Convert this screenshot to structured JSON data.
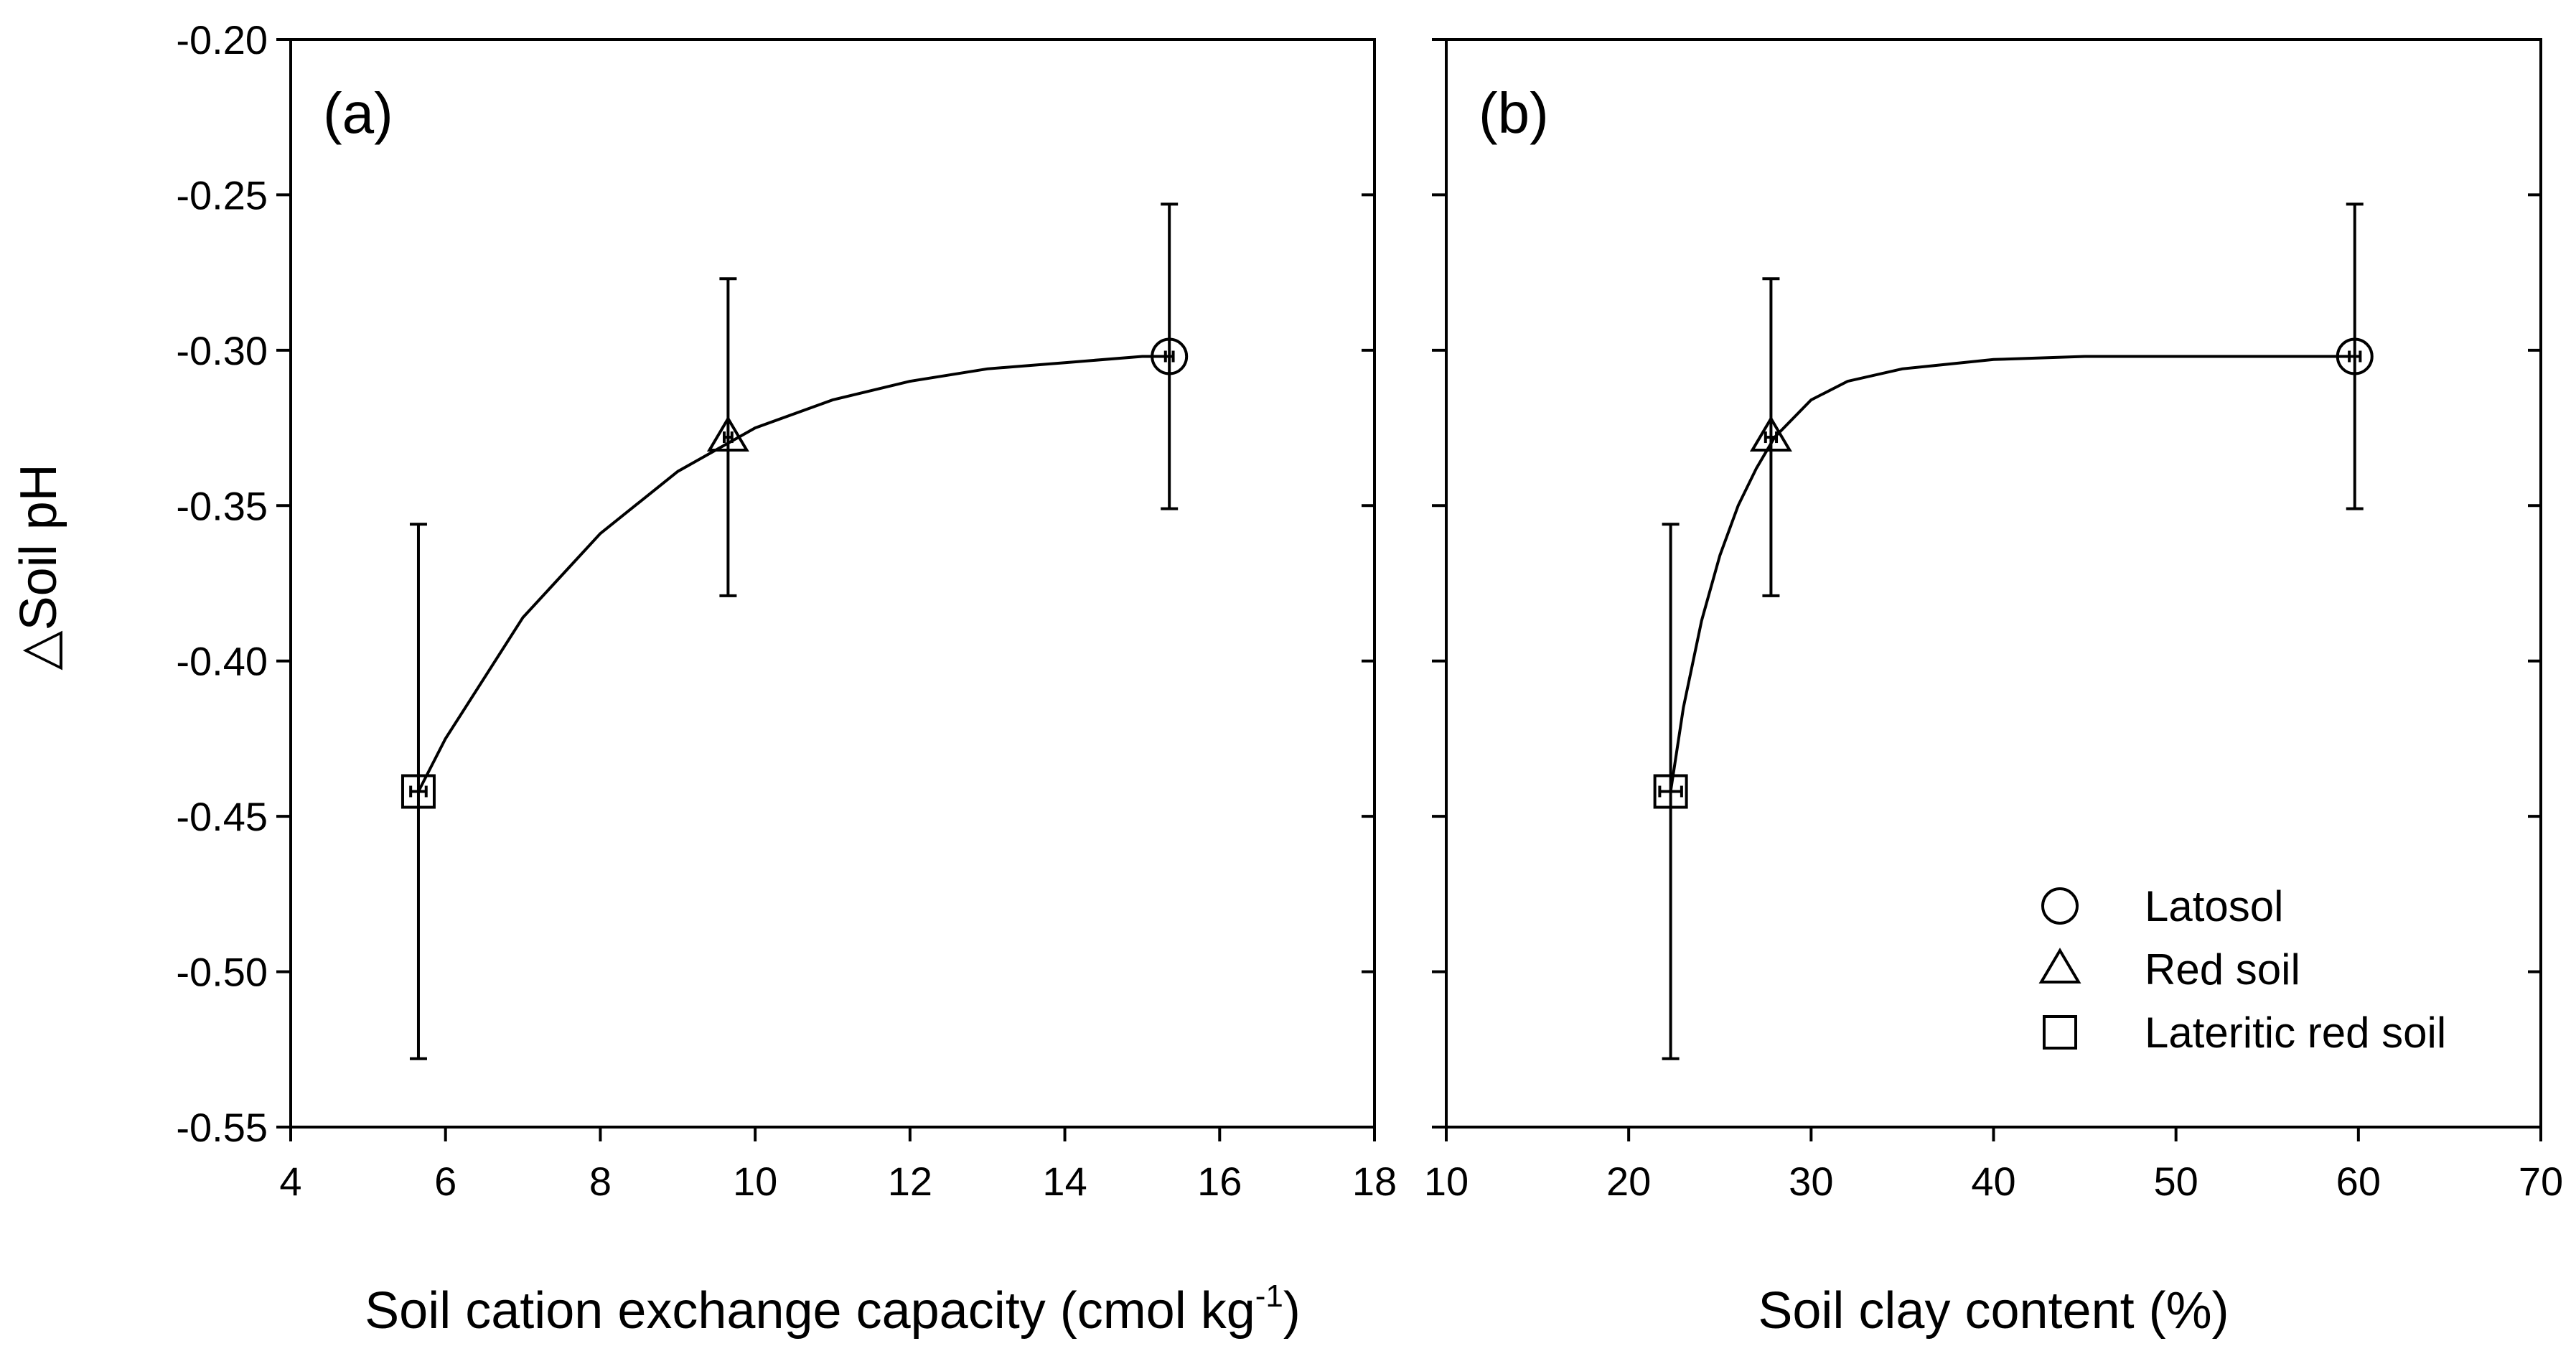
{
  "shared_y_axis": {
    "label": "△Soil pH",
    "ticks": [
      "-0.20",
      "-0.25",
      "-0.30",
      "-0.35",
      "-0.40",
      "-0.45",
      "-0.50",
      "-0.55"
    ]
  },
  "legend": {
    "placement": "bottom-right of panel (b)",
    "entries": [
      {
        "label": "Latosol",
        "marker": "circle"
      },
      {
        "label": "Red soil",
        "marker": "triangle"
      },
      {
        "label": "Lateritic red soil",
        "marker": "square"
      }
    ]
  },
  "chart_data": [
    {
      "type": "scatter",
      "panel_label": "(a)",
      "xlabel_main": "Soil cation exchange capacity (cmol kg",
      "xlabel_sup": "-1",
      "xlabel_end": ")",
      "ylabel": "△Soil pH",
      "xlim": [
        4,
        18
      ],
      "ylim": [
        -0.55,
        -0.2
      ],
      "x_ticks": [
        "4",
        "6",
        "8",
        "10",
        "12",
        "14",
        "16",
        "18"
      ],
      "grid": false,
      "series": [
        {
          "name": "Latosol",
          "marker": "circle",
          "x": 15.35,
          "y": -0.302,
          "y_err_low": -0.351,
          "y_err_high": -0.253,
          "x_err": 0.05
        },
        {
          "name": "Red soil",
          "marker": "triangle",
          "x": 9.65,
          "y": -0.328,
          "y_err_low": -0.379,
          "y_err_high": -0.277,
          "x_err": 0.05
        },
        {
          "name": "Lateritic red soil",
          "marker": "square",
          "x": 5.65,
          "y": -0.442,
          "y_err_low": -0.528,
          "y_err_high": -0.356,
          "x_err": 0.1
        }
      ],
      "fit_curve": {
        "x": [
          5.65,
          6,
          7,
          8,
          9,
          10,
          11,
          12,
          13,
          14,
          15,
          15.35
        ],
        "y": [
          -0.442,
          -0.425,
          -0.386,
          -0.359,
          -0.339,
          -0.325,
          -0.316,
          -0.31,
          -0.306,
          -0.304,
          -0.302,
          -0.302
        ]
      }
    },
    {
      "type": "scatter",
      "panel_label": "(b)",
      "xlabel_main": "Soil clay content (%)",
      "xlabel_sup": "",
      "xlabel_end": "",
      "ylabel": "△Soil pH",
      "xlim": [
        10,
        70
      ],
      "ylim": [
        -0.55,
        -0.2
      ],
      "x_ticks": [
        "10",
        "20",
        "30",
        "40",
        "50",
        "60",
        "70"
      ],
      "grid": false,
      "series": [
        {
          "name": "Latosol",
          "marker": "circle",
          "x": 59.8,
          "y": -0.302,
          "y_err_low": -0.351,
          "y_err_high": -0.253,
          "x_err": 0.3
        },
        {
          "name": "Red soil",
          "marker": "triangle",
          "x": 27.8,
          "y": -0.328,
          "y_err_low": -0.379,
          "y_err_high": -0.277,
          "x_err": 0.3
        },
        {
          "name": "Lateritic red soil",
          "marker": "square",
          "x": 22.3,
          "y": -0.442,
          "y_err_low": -0.528,
          "y_err_high": -0.356,
          "x_err": 0.6
        }
      ],
      "fit_curve": {
        "x": [
          22.3,
          23,
          24,
          25,
          26,
          27,
          28,
          30,
          32,
          35,
          40,
          45,
          50,
          60
        ],
        "y": [
          -0.442,
          -0.415,
          -0.387,
          -0.366,
          -0.35,
          -0.338,
          -0.328,
          -0.316,
          -0.31,
          -0.306,
          -0.303,
          -0.302,
          -0.302,
          -0.302
        ]
      }
    }
  ]
}
